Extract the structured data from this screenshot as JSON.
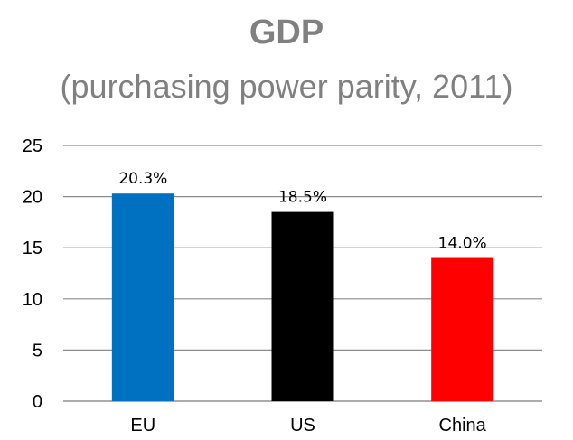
{
  "chart_data": {
    "type": "bar",
    "title": "GDP",
    "subtitle": "(purchasing power parity, 2011)",
    "categories": [
      "EU",
      "US",
      "China"
    ],
    "values": [
      20.3,
      18.5,
      14.0
    ],
    "data_labels": [
      "20.3%",
      "18.5%",
      "14.0%"
    ],
    "colors": [
      "#0070C0",
      "#000000",
      "#FF0000"
    ],
    "ylim": [
      0,
      25
    ],
    "yticks": [
      0,
      5,
      10,
      15,
      20,
      25
    ],
    "grid": true,
    "xlabel": "",
    "ylabel": ""
  }
}
